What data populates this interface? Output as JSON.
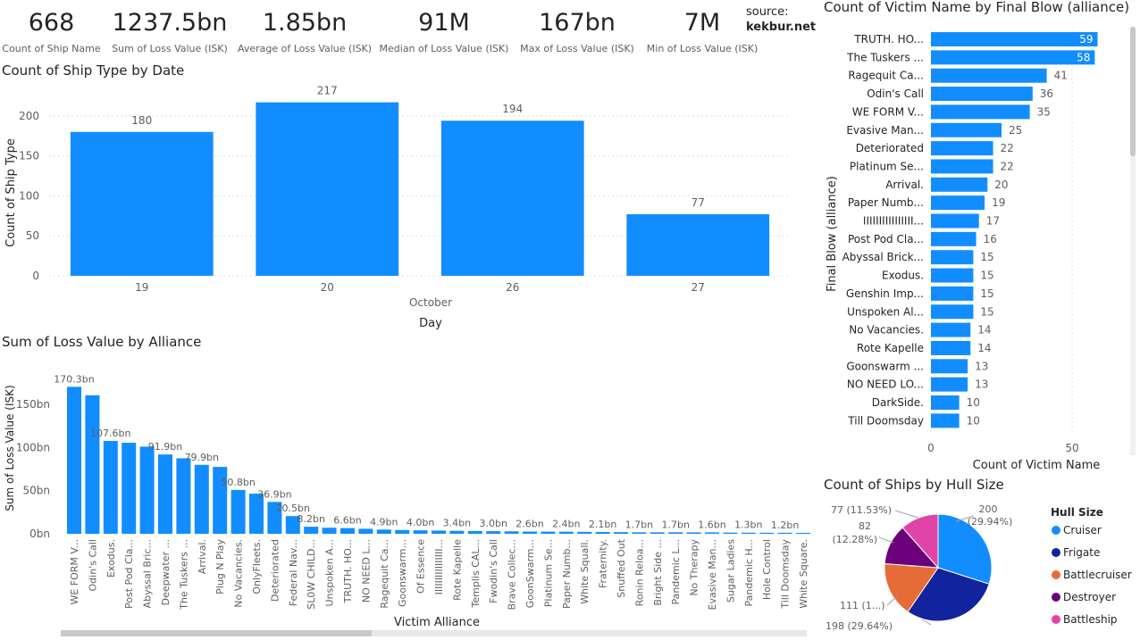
{
  "kpis": [
    {
      "value": "668",
      "label": "Count of Ship Name"
    },
    {
      "value": "1237.5bn",
      "label": "Sum of Loss Value (ISK)"
    },
    {
      "value": "1.85bn",
      "label": "Average of Loss Value (ISK)"
    },
    {
      "value": "91M",
      "label": "Median of Loss Value (ISK)"
    },
    {
      "value": "167bn",
      "label": "Max of Loss Value (ISK)"
    },
    {
      "value": "7M",
      "label": "Min of Loss Value (ISK)"
    }
  ],
  "source": {
    "prefix": "source:",
    "site": "kekbur.net"
  },
  "colors": {
    "bar": "#118DFF",
    "grid": "#e1dfdd",
    "text": "#605e5c"
  },
  "chart_data": [
    {
      "type": "bar",
      "title": "Count of Ship Type by Date",
      "categories": [
        "19",
        "20",
        "26",
        "27"
      ],
      "values": [
        180,
        217,
        194,
        77
      ],
      "value_labels": [
        "180",
        "217",
        "194",
        "77"
      ],
      "xlabel": "Day",
      "xgroup": "October",
      "ylabel": "Count of Ship Type",
      "yticks": [
        "0",
        "50",
        "100",
        "150",
        "200"
      ],
      "ylim": [
        0,
        230
      ]
    },
    {
      "type": "bar",
      "title": "Sum of Loss Value by Alliance",
      "categories": [
        "WE FORM V...",
        "Odin's Call",
        "Exodus.",
        "Post Pod Cla...",
        "Abyssal Bric...",
        "Deepwater ...",
        "The Tuskers ...",
        "Arrival.",
        "Plug N Play",
        "No Vacancies.",
        "OnlyFleets.",
        "Deteriorated",
        "Federal Nav...",
        "SL0W CHILD...",
        "Unspoken A...",
        "TRUTH. HO...",
        "NO NEED L...",
        "Ragequit Ca...",
        "Goonswarm...",
        "Of Essence",
        "IIIIIIIIIIIIIIII...",
        "Rote Kapelle",
        "Templis CAL...",
        "Fwodin's Call",
        "Brave Collec...",
        "GoonSwarm...",
        "Platinum Se...",
        "Paper Numb...",
        "White Squall.",
        "Fraternity.",
        "Snuffed Out",
        "Ronin Reloa...",
        "Bright Side ...",
        "Pandemic L...",
        "No Therapy",
        "Evasive Man...",
        "Sugar Ladies",
        "Pandemic H...",
        "Hole Control",
        "Till Doomsday",
        "White Square."
      ],
      "values": [
        170.3,
        160.5,
        107.6,
        105.5,
        101.0,
        91.9,
        87.5,
        79.9,
        77.5,
        50.8,
        46.5,
        36.9,
        20.5,
        8.2,
        7.0,
        6.6,
        5.8,
        4.9,
        4.4,
        4.0,
        3.7,
        3.4,
        3.2,
        3.0,
        2.8,
        2.6,
        2.5,
        2.4,
        2.2,
        2.1,
        1.9,
        1.7,
        1.7,
        1.7,
        1.6,
        1.6,
        1.4,
        1.3,
        1.2,
        1.2,
        1.1
      ],
      "value_labels": [
        "170.3bn",
        "",
        "107.6bn",
        "",
        "",
        "91.9bn",
        "",
        "79.9bn",
        "",
        "50.8bn",
        "",
        "36.9bn",
        "20.5bn",
        "8.2bn",
        "",
        "6.6bn",
        "",
        "4.9bn",
        "",
        "4.0bn",
        "",
        "3.4bn",
        "",
        "3.0bn",
        "",
        "2.6bn",
        "",
        "2.4bn",
        "",
        "2.1bn",
        "",
        "1.7bn",
        "",
        "1.7bn",
        "",
        "1.6bn",
        "",
        "1.3bn",
        "",
        "1.2bn",
        ""
      ],
      "xlabel": "Victim Alliance",
      "ylabel": "Sum of Loss Value (ISK)",
      "yticks": [
        "0bn",
        "50bn",
        "100bn",
        "150bn"
      ],
      "ylim": [
        0,
        180
      ]
    },
    {
      "type": "bar",
      "orientation": "horizontal",
      "title": "Count of Victim Name by Final Blow (alliance)",
      "categories": [
        "TRUTH. HO...",
        "The Tuskers ...",
        "Ragequit Ca...",
        "Odin's Call",
        "WE FORM V...",
        "Evasive Man...",
        "Deteriorated",
        "Platinum Se...",
        "Arrival.",
        "Paper Numb...",
        "IIIIIIIIIIIIIIII...",
        "Post Pod Cla...",
        "Abyssal Brick...",
        "Exodus.",
        "Genshin Imp...",
        "Unspoken Al...",
        "No Vacancies.",
        "Rote Kapelle",
        "Goonswarm ...",
        "NO NEED LO...",
        "DarkSide.",
        "Till Doomsday"
      ],
      "values": [
        59,
        58,
        41,
        36,
        35,
        25,
        22,
        22,
        20,
        19,
        17,
        16,
        15,
        15,
        15,
        15,
        14,
        14,
        13,
        13,
        10,
        10
      ],
      "value_labels": [
        "59",
        "58",
        "41",
        "36",
        "35",
        "25",
        "22",
        "22",
        "20",
        "19",
        "17",
        "16",
        "15",
        "15",
        "15",
        "15",
        "14",
        "14",
        "13",
        "13",
        "10",
        "10"
      ],
      "xlabel": "Count of Victim Name",
      "ylabel": "Final Blow (alliance)",
      "xticks": [
        "0",
        "50"
      ],
      "xlim": [
        0,
        62
      ]
    },
    {
      "type": "pie",
      "title": "Count of Ships by Hull Size",
      "legend_title": "Hull Size",
      "labels": [
        "Cruiser",
        "Frigate",
        "Battlecruiser",
        "Destroyer",
        "Battleship"
      ],
      "values": [
        200,
        198,
        111,
        82,
        77
      ],
      "colors": [
        "#118DFF",
        "#12239E",
        "#E66C37",
        "#6B007B",
        "#E044A7"
      ],
      "slice_labels": [
        "200 (29.94%)",
        "198 (29.64%)",
        "111 (1...)",
        "82 (12.28%)",
        "77 (11.53%)"
      ]
    }
  ]
}
